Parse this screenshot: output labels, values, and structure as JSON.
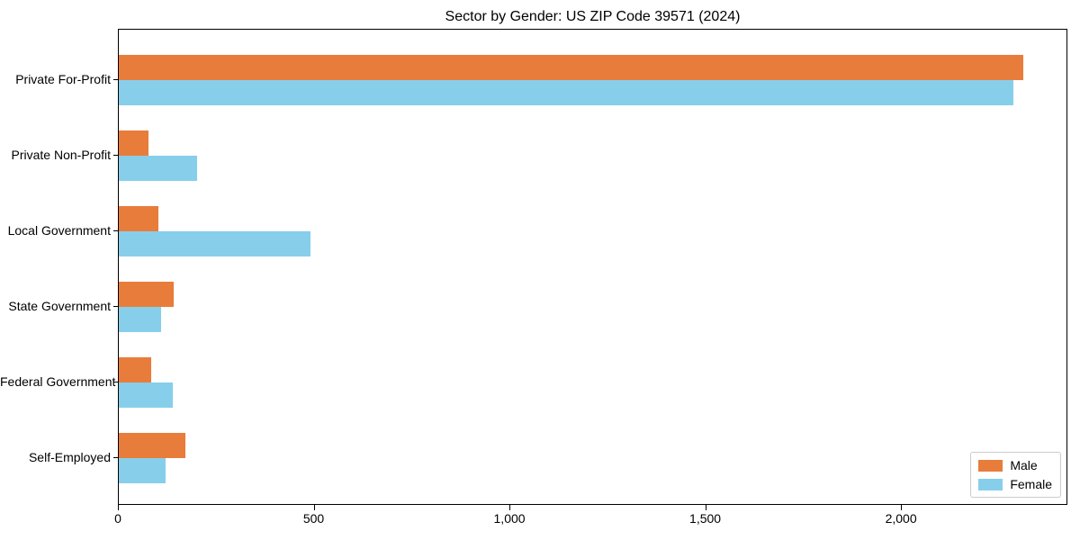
{
  "chart_data": {
    "type": "bar",
    "orientation": "horizontal",
    "title": "Sector by Gender: US ZIP Code 39571 (2024)",
    "categories": [
      "Private For-Profit",
      "Private Non-Profit",
      "Local Government",
      "State Government",
      "Federal Government",
      "Self-Employed"
    ],
    "series": [
      {
        "name": "Male",
        "color": "#e87d3b",
        "values": [
          2310,
          77,
          102,
          140,
          83,
          169
        ]
      },
      {
        "name": "Female",
        "color": "#87ceeb",
        "values": [
          2285,
          200,
          490,
          109,
          137,
          120
        ]
      }
    ],
    "xlabel": "",
    "ylabel": "",
    "xlim": [
      0,
      2425
    ],
    "xticks": [
      {
        "value": 0,
        "label": "0"
      },
      {
        "value": 500,
        "label": "500"
      },
      {
        "value": 1000,
        "label": "1,000"
      },
      {
        "value": 1500,
        "label": "1,500"
      },
      {
        "value": 2000,
        "label": "2,000"
      }
    ],
    "legend": {
      "position": "lower right",
      "items": [
        "Male",
        "Female"
      ]
    },
    "grid": false,
    "colors": {
      "axis": "#000000",
      "legend_border": "#cccccc",
      "background": "#ffffff"
    }
  }
}
